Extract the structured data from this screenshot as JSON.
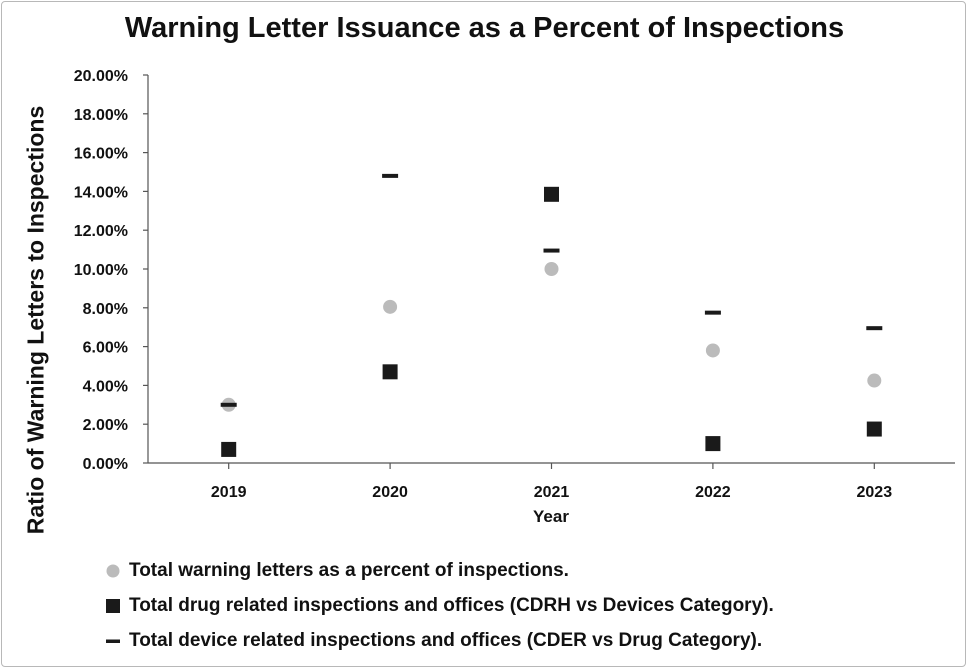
{
  "chart_data": {
    "type": "scatter",
    "title": "Warning Letter Issuance as a Percent of Inspections",
    "xlabel": "Year",
    "ylabel": "Ratio of Warning Letters to Inspections",
    "categories": [
      "2019",
      "2020",
      "2021",
      "2022",
      "2023"
    ],
    "ylim": [
      0,
      20
    ],
    "y_ticks": [
      "0.00%",
      "2.00%",
      "4.00%",
      "6.00%",
      "8.00%",
      "10.00%",
      "12.00%",
      "14.00%",
      "16.00%",
      "18.00%",
      "20.00%"
    ],
    "grid": false,
    "legend_position": "bottom-left",
    "series": [
      {
        "name": "Total warning letters as a percent of inspections.",
        "marker": "circle",
        "color": "#bbbbbb",
        "values": [
          3.0,
          8.05,
          10.0,
          5.8,
          4.25
        ]
      },
      {
        "name": "Total drug related inspections and offices (CDRH vs Devices Category).",
        "marker": "square",
        "color": "#1a1a1a",
        "values": [
          0.7,
          4.7,
          13.85,
          1.0,
          1.75
        ]
      },
      {
        "name": "Total device related inspections and offices (CDER vs Drug Category).",
        "marker": "dash",
        "color": "#1a1a1a",
        "values": [
          3.0,
          14.8,
          10.95,
          7.75,
          6.95
        ]
      }
    ]
  }
}
